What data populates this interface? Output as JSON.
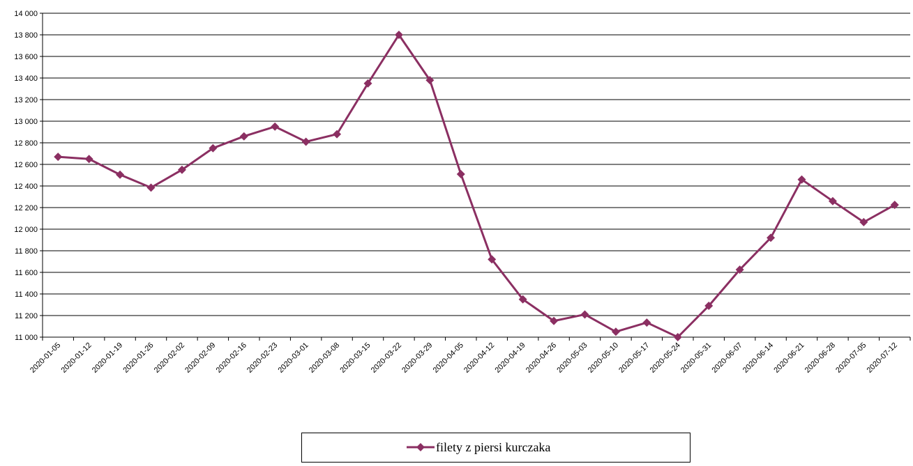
{
  "chart_data": {
    "type": "line",
    "categories": [
      "2020-01-05",
      "2020-01-12",
      "2020-01-19",
      "2020-01-26",
      "2020-02-02",
      "2020-02-09",
      "2020-02-16",
      "2020-02-23",
      "2020-03-01",
      "2020-03-08",
      "2020-03-15",
      "2020-03-22",
      "2020-03-29",
      "2020-04-05",
      "2020-04-12",
      "2020-04-19",
      "2020-04-26",
      "2020-05-03",
      "2020-05-10",
      "2020-05-17",
      "2020-05-24",
      "2020-05-31",
      "2020-06-07",
      "2020-06-14",
      "2020-06-21",
      "2020-06-28",
      "2020-07-05",
      "2020-07-12"
    ],
    "series": [
      {
        "name": "filety z piersi kurczaka",
        "color": "#8b2f62",
        "values": [
          12670,
          12650,
          12505,
          12385,
          12550,
          12750,
          12860,
          12950,
          12810,
          12880,
          13350,
          13800,
          13380,
          12510,
          11720,
          11350,
          11150,
          11210,
          11050,
          11135,
          11000,
          11290,
          11625,
          11920,
          12460,
          12260,
          12065,
          12225
        ]
      }
    ],
    "ylim": [
      11000,
      14000
    ],
    "yticks": [
      {
        "value": 11000,
        "label": "11 000"
      },
      {
        "value": 11200,
        "label": "11 200"
      },
      {
        "value": 11400,
        "label": "11 400"
      },
      {
        "value": 11600,
        "label": "11 600"
      },
      {
        "value": 11800,
        "label": "11 800"
      },
      {
        "value": 12000,
        "label": "12 000"
      },
      {
        "value": 12200,
        "label": "12 200"
      },
      {
        "value": 12400,
        "label": "12 400"
      },
      {
        "value": 12600,
        "label": "12 600"
      },
      {
        "value": 12800,
        "label": "12 800"
      },
      {
        "value": 13000,
        "label": "13 000"
      },
      {
        "value": 13200,
        "label": "13 200"
      },
      {
        "value": 13400,
        "label": "13 400"
      },
      {
        "value": 13600,
        "label": "13 600"
      },
      {
        "value": 13800,
        "label": "13 800"
      },
      {
        "value": 14000,
        "label": "14 000"
      }
    ],
    "grid": true,
    "legend": "bottom"
  }
}
